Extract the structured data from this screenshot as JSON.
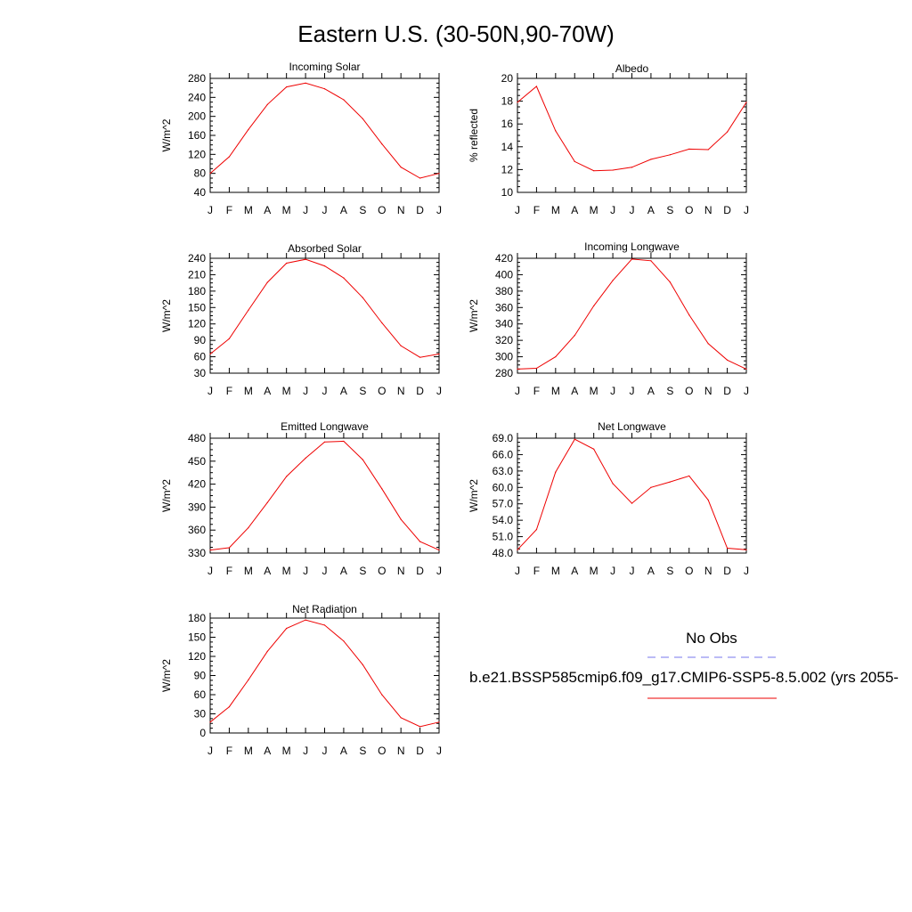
{
  "title": "Eastern U.S. (30-50N,90-70W)",
  "months": [
    "J",
    "F",
    "M",
    "A",
    "M",
    "J",
    "J",
    "A",
    "S",
    "O",
    "N",
    "D",
    "J"
  ],
  "legend": {
    "obs_label": "No Obs",
    "model_label": "b.e21.BSSP585cmip6.f09_g17.CMIP6-SSP5-8.5.002 (yrs 2055-",
    "obs_color": "#7777ee",
    "model_color": "#ee0000"
  },
  "line_color": "#ee0000",
  "chart_data": [
    {
      "type": "line",
      "title": "Incoming Solar",
      "ylabel": "W/m^2",
      "ylim": [
        40,
        280
      ],
      "yticks": [
        "40",
        "80",
        "120",
        "160",
        "200",
        "240",
        "280"
      ],
      "x": [
        "J",
        "F",
        "M",
        "A",
        "M",
        "J",
        "J",
        "A",
        "S",
        "O",
        "N",
        "D",
        "J"
      ],
      "series": [
        {
          "values": [
            80,
            115,
            172,
            225,
            262,
            270,
            258,
            235,
            195,
            142,
            93,
            70,
            80
          ]
        }
      ]
    },
    {
      "type": "line",
      "title": "Albedo",
      "ylabel": "% reflected",
      "ylim": [
        10,
        20
      ],
      "yticks": [
        "10",
        "12",
        "14",
        "16",
        "18",
        "20"
      ],
      "x": [
        "J",
        "F",
        "M",
        "A",
        "M",
        "J",
        "J",
        "A",
        "S",
        "O",
        "N",
        "D",
        "J"
      ],
      "series": [
        {
          "values": [
            17.9,
            19.3,
            15.4,
            12.7,
            11.9,
            11.95,
            12.2,
            12.9,
            13.3,
            13.8,
            13.75,
            15.3,
            17.9
          ]
        }
      ]
    },
    {
      "type": "line",
      "title": "Absorbed Solar",
      "ylabel": "W/m^2",
      "ylim": [
        30,
        240
      ],
      "yticks": [
        "30",
        "60",
        "90",
        "120",
        "150",
        "180",
        "210",
        "240"
      ],
      "x": [
        "J",
        "F",
        "M",
        "A",
        "M",
        "J",
        "J",
        "A",
        "S",
        "O",
        "N",
        "D",
        "J"
      ],
      "series": [
        {
          "values": [
            65,
            93,
            145,
            196,
            231,
            238,
            226,
            204,
            168,
            122,
            80,
            59,
            65
          ]
        }
      ]
    },
    {
      "type": "line",
      "title": "Incoming Longwave",
      "ylabel": "W/m^2",
      "ylim": [
        280,
        420
      ],
      "yticks": [
        "280",
        "300",
        "320",
        "340",
        "360",
        "380",
        "400",
        "420"
      ],
      "x": [
        "J",
        "F",
        "M",
        "A",
        "M",
        "J",
        "J",
        "A",
        "S",
        "O",
        "N",
        "D",
        "J"
      ],
      "series": [
        {
          "values": [
            285,
            286,
            300,
            326,
            362,
            393,
            419,
            417,
            391,
            351,
            316,
            296,
            285
          ]
        }
      ]
    },
    {
      "type": "line",
      "title": "Emitted Longwave",
      "ylabel": "W/m^2",
      "ylim": [
        330,
        480
      ],
      "yticks": [
        "330",
        "360",
        "390",
        "420",
        "450",
        "480"
      ],
      "x": [
        "J",
        "F",
        "M",
        "A",
        "M",
        "J",
        "J",
        "A",
        "S",
        "O",
        "N",
        "D",
        "J"
      ],
      "series": [
        {
          "values": [
            334,
            337,
            363,
            396,
            430,
            454,
            475,
            476,
            452,
            414,
            374,
            345,
            334
          ]
        }
      ]
    },
    {
      "type": "line",
      "title": "Net Longwave",
      "ylabel": "W/m^2",
      "ylim": [
        48.0,
        69.0
      ],
      "yticks": [
        "48.0",
        "51.0",
        "54.0",
        "57.0",
        "60.0",
        "63.0",
        "66.0",
        "69.0"
      ],
      "x": [
        "J",
        "F",
        "M",
        "A",
        "M",
        "J",
        "J",
        "A",
        "S",
        "O",
        "N",
        "D",
        "J"
      ],
      "series": [
        {
          "values": [
            48.6,
            52.3,
            62.8,
            68.8,
            67.0,
            60.7,
            57.1,
            60.0,
            61.0,
            62.1,
            57.7,
            48.9,
            48.6
          ]
        }
      ]
    },
    {
      "type": "line",
      "title": "Net Radiation",
      "ylabel": "W/m^2",
      "ylim": [
        0,
        180
      ],
      "yticks": [
        "0",
        "30",
        "60",
        "90",
        "120",
        "150",
        "180"
      ],
      "x": [
        "J",
        "F",
        "M",
        "A",
        "M",
        "J",
        "J",
        "A",
        "S",
        "O",
        "N",
        "D",
        "J"
      ],
      "series": [
        {
          "values": [
            17,
            41,
            83,
            128,
            164,
            177,
            169,
            144,
            107,
            60,
            24,
            10,
            17
          ]
        }
      ]
    }
  ]
}
